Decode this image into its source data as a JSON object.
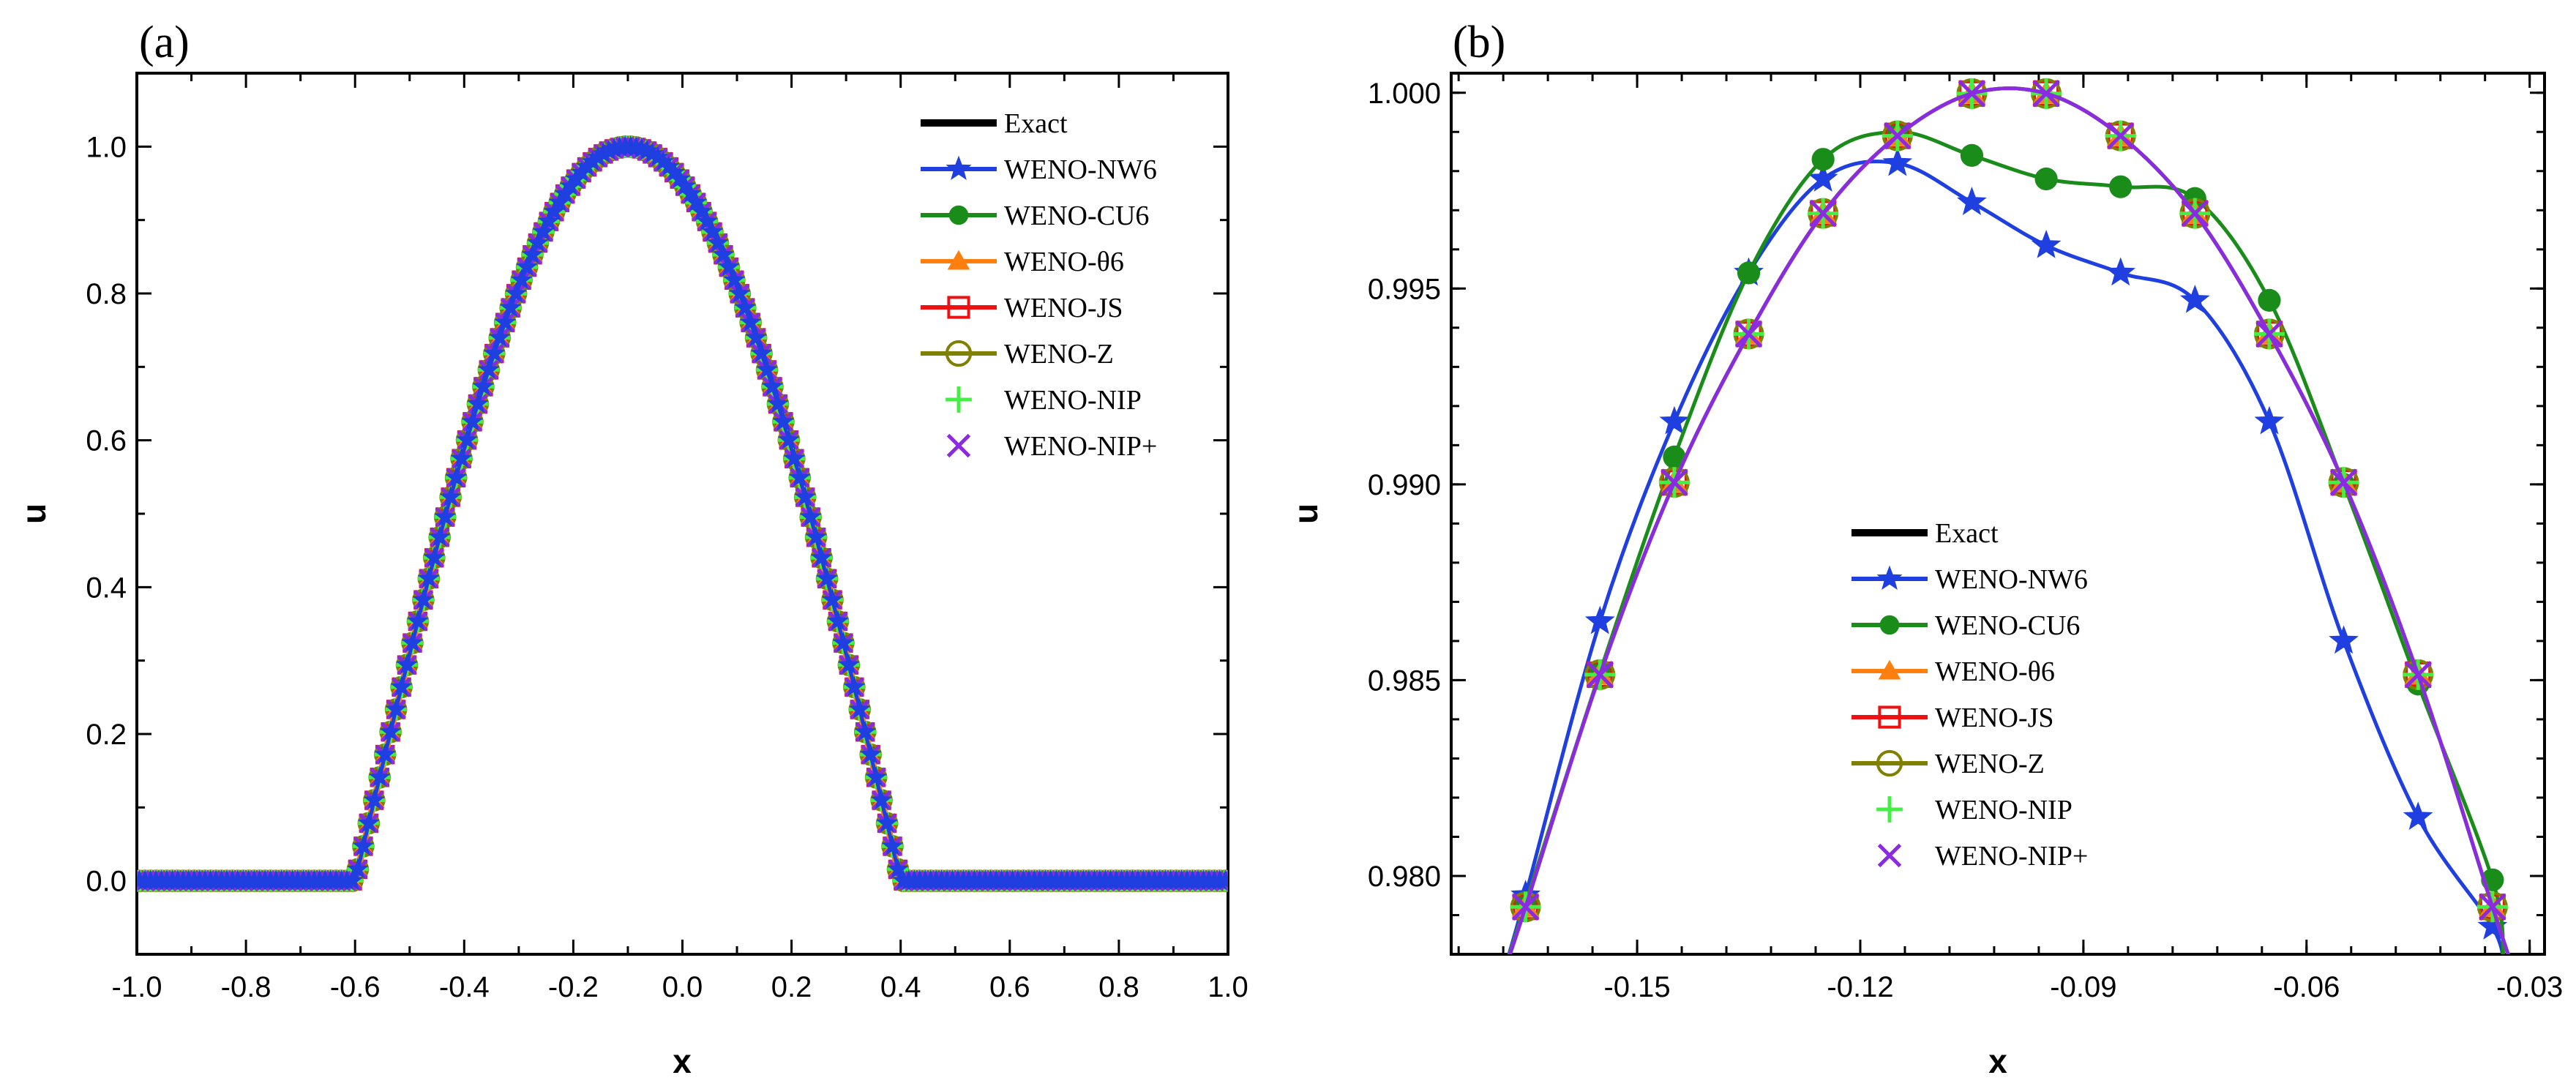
{
  "chart_data": [
    {
      "panel": "(a)",
      "type": "line",
      "xlabel": "x",
      "ylabel": "u",
      "xlim": [
        -1.0,
        1.0
      ],
      "ylim": [
        -0.1,
        1.1
      ],
      "xticks": [
        "-1.0",
        "-0.8",
        "-0.6",
        "-0.4",
        "-0.2",
        "0.0",
        "0.2",
        "0.4",
        "0.6",
        "0.8",
        "1.0"
      ],
      "yticks": [
        "0.0",
        "0.2",
        "0.4",
        "0.6",
        "0.8",
        "1.0"
      ],
      "legend_position": "top-right",
      "series": [
        {
          "name": "Exact",
          "color": "#000000",
          "marker": "none",
          "shape": "cosine-pulse",
          "left_foot": -0.6,
          "right_foot": 0.4,
          "peak_x": -0.1,
          "peak": 1.0,
          "baseline": 0.0
        },
        {
          "name": "WENO-NW6",
          "color": "#1f3fe0",
          "marker": "star",
          "shape": "cosine-pulse",
          "left_foot": -0.6,
          "right_foot": 0.4,
          "peak_x": -0.1,
          "peak": 1.0,
          "baseline": 0.0
        },
        {
          "name": "WENO-CU6",
          "color": "#1a8c1a",
          "marker": "circle-filled",
          "shape": "cosine-pulse",
          "left_foot": -0.6,
          "right_foot": 0.4,
          "peak_x": -0.1,
          "peak": 1.0,
          "baseline": 0.0
        },
        {
          "name": "WENO-θ6",
          "color": "#ff7f0e",
          "marker": "triangle-filled",
          "shape": "cosine-pulse",
          "left_foot": -0.6,
          "right_foot": 0.4,
          "peak_x": -0.1,
          "peak": 1.0,
          "baseline": 0.0
        },
        {
          "name": "WENO-JS",
          "color": "#ee1111",
          "marker": "square-open",
          "shape": "cosine-pulse",
          "left_foot": -0.6,
          "right_foot": 0.4,
          "peak_x": -0.1,
          "peak": 1.0,
          "baseline": 0.0
        },
        {
          "name": "WENO-Z",
          "color": "#808000",
          "marker": "circle-open",
          "shape": "cosine-pulse",
          "left_foot": -0.6,
          "right_foot": 0.4,
          "peak_x": -0.1,
          "peak": 1.0,
          "baseline": 0.0
        },
        {
          "name": "WENO-NIP",
          "color": "#44ee44",
          "marker": "plus",
          "shape": "cosine-pulse",
          "left_foot": -0.6,
          "right_foot": 0.4,
          "peak_x": -0.1,
          "peak": 1.0,
          "baseline": 0.0
        },
        {
          "name": "WENO-NIP+",
          "color": "#8a2be2",
          "marker": "cross",
          "shape": "cosine-pulse",
          "left_foot": -0.6,
          "right_foot": 0.4,
          "peak_x": -0.1,
          "peak": 1.0,
          "baseline": 0.0
        }
      ]
    },
    {
      "panel": "(b)",
      "type": "line",
      "xlabel": "x",
      "ylabel": "u",
      "xlim": [
        -0.175,
        -0.028
      ],
      "ylim": [
        0.978,
        1.0005
      ],
      "xticks": [
        -0.15,
        -0.12,
        -0.09,
        -0.06,
        -0.03
      ],
      "xtick_labels": [
        "-0.15",
        "-0.12",
        "-0.09",
        "-0.06",
        "-0.03"
      ],
      "yticks": [
        0.98,
        0.985,
        0.99,
        0.995,
        1.0
      ],
      "ytick_labels": [
        "0.980",
        "0.985",
        "0.990",
        "0.995",
        "1.000"
      ],
      "legend_position": "bottom-center",
      "series": [
        {
          "name": "Exact",
          "color": "#000000",
          "marker": "none",
          "x": [
            -0.168,
            -0.165,
            -0.155,
            -0.145,
            -0.135,
            -0.125,
            -0.115,
            -0.105,
            -0.095,
            -0.085,
            -0.075,
            -0.065,
            -0.055,
            -0.045,
            -0.035,
            -0.032
          ],
          "y": [
            0.9775,
            0.97921,
            0.98514,
            0.99005,
            0.99384,
            0.99692,
            0.9989,
            0.99998,
            0.99998,
            0.9989,
            0.99692,
            0.99384,
            0.99005,
            0.98514,
            0.97921,
            0.9775
          ]
        },
        {
          "name": "WENO-NW6",
          "color": "#1f3fe0",
          "marker": "star",
          "x": [
            -0.168,
            -0.165,
            -0.155,
            -0.145,
            -0.135,
            -0.125,
            -0.115,
            -0.105,
            -0.095,
            -0.085,
            -0.075,
            -0.065,
            -0.055,
            -0.045,
            -0.035,
            -0.0335
          ],
          "y": [
            0.9775,
            0.9795,
            0.9865,
            0.9916,
            0.9954,
            0.9978,
            0.9982,
            0.9972,
            0.9961,
            0.9954,
            0.9947,
            0.9916,
            0.986,
            0.9815,
            0.9787,
            0.9776
          ]
        },
        {
          "name": "WENO-CU6",
          "color": "#1a8c1a",
          "marker": "circle-filled",
          "x": [
            -0.168,
            -0.165,
            -0.155,
            -0.145,
            -0.135,
            -0.125,
            -0.115,
            -0.105,
            -0.095,
            -0.085,
            -0.075,
            -0.065,
            -0.055,
            -0.045,
            -0.035,
            -0.0335
          ],
          "y": [
            0.9775,
            0.9793,
            0.9852,
            0.9907,
            0.9954,
            0.9983,
            0.999,
            0.9984,
            0.9978,
            0.9976,
            0.9973,
            0.9947,
            0.99,
            0.9849,
            0.9799,
            0.9778
          ]
        },
        {
          "name": "WENO-θ6",
          "color": "#ff7f0e",
          "marker": "triangle-filled",
          "x": [
            -0.168,
            -0.165,
            -0.155,
            -0.145,
            -0.135,
            -0.125,
            -0.115,
            -0.105,
            -0.095,
            -0.085,
            -0.075,
            -0.065,
            -0.055,
            -0.045,
            -0.035,
            -0.032
          ],
          "y": [
            0.9775,
            0.97921,
            0.98514,
            0.99005,
            0.99384,
            0.99692,
            0.9989,
            0.99998,
            0.99998,
            0.9989,
            0.99692,
            0.99384,
            0.99005,
            0.98514,
            0.97921,
            0.9775
          ]
        },
        {
          "name": "WENO-JS",
          "color": "#ee1111",
          "marker": "square-open",
          "x": [
            -0.168,
            -0.165,
            -0.155,
            -0.145,
            -0.135,
            -0.125,
            -0.115,
            -0.105,
            -0.095,
            -0.085,
            -0.075,
            -0.065,
            -0.055,
            -0.045,
            -0.035,
            -0.032
          ],
          "y": [
            0.9775,
            0.97921,
            0.98514,
            0.99005,
            0.99384,
            0.99692,
            0.9989,
            0.99998,
            0.99998,
            0.9989,
            0.99692,
            0.99384,
            0.99005,
            0.98514,
            0.97921,
            0.9775
          ]
        },
        {
          "name": "WENO-Z",
          "color": "#808000",
          "marker": "circle-open",
          "x": [
            -0.168,
            -0.165,
            -0.155,
            -0.145,
            -0.135,
            -0.125,
            -0.115,
            -0.105,
            -0.095,
            -0.085,
            -0.075,
            -0.065,
            -0.055,
            -0.045,
            -0.035,
            -0.032
          ],
          "y": [
            0.9775,
            0.97921,
            0.98514,
            0.99005,
            0.99384,
            0.99692,
            0.9989,
            0.99998,
            0.99998,
            0.9989,
            0.99692,
            0.99384,
            0.99005,
            0.98514,
            0.97921,
            0.9775
          ]
        },
        {
          "name": "WENO-NIP",
          "color": "#44ee44",
          "marker": "plus",
          "x": [
            -0.168,
            -0.165,
            -0.155,
            -0.145,
            -0.135,
            -0.125,
            -0.115,
            -0.105,
            -0.095,
            -0.085,
            -0.075,
            -0.065,
            -0.055,
            -0.045,
            -0.035,
            -0.032
          ],
          "y": [
            0.9775,
            0.97921,
            0.98514,
            0.99005,
            0.99384,
            0.99692,
            0.9989,
            0.99998,
            0.99998,
            0.9989,
            0.99692,
            0.99384,
            0.99005,
            0.98514,
            0.97921,
            0.9775
          ]
        },
        {
          "name": "WENO-NIP+",
          "color": "#8a2be2",
          "marker": "cross",
          "x": [
            -0.168,
            -0.165,
            -0.155,
            -0.145,
            -0.135,
            -0.125,
            -0.115,
            -0.105,
            -0.095,
            -0.085,
            -0.075,
            -0.065,
            -0.055,
            -0.045,
            -0.035,
            -0.032
          ],
          "y": [
            0.9775,
            0.97921,
            0.98514,
            0.99005,
            0.99384,
            0.99692,
            0.9989,
            0.99998,
            0.99998,
            0.9989,
            0.99692,
            0.99384,
            0.99005,
            0.98514,
            0.97921,
            0.9775
          ]
        }
      ]
    }
  ]
}
